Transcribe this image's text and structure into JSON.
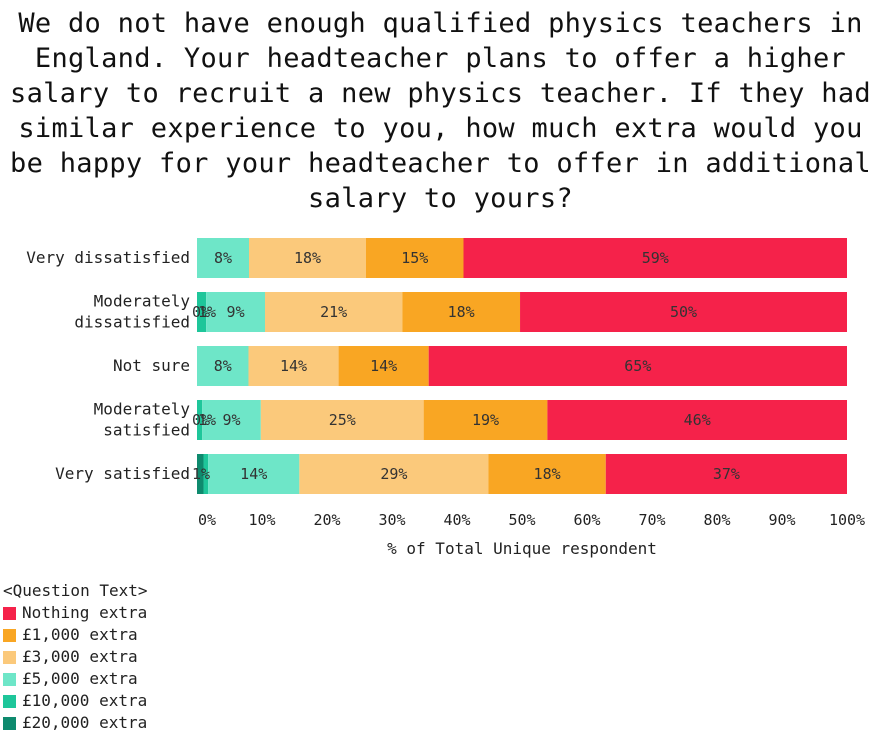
{
  "chart_data": {
    "type": "bar",
    "orientation": "horizontal",
    "stacked": true,
    "title": "We do not have enough qualified physics teachers in England. Your headteacher plans to offer a higher salary to recruit a new physics teacher. If they had similar experience to you, how much extra would you be happy for your headteacher to offer in additional salary to yours?",
    "title_lines": [
      "We do not have enough qualified physics teachers in",
      "England. Your headteacher plans to offer a higher",
      "salary to recruit a new physics teacher. If they had",
      "similar experience to you, how much extra would you",
      "be happy for your headteacher to offer in additional",
      "salary to yours?"
    ],
    "xlabel": "% of Total Unique respondent",
    "ylabel": "",
    "xlim": [
      0,
      100
    ],
    "xticks": [
      "0%",
      "10%",
      "20%",
      "30%",
      "40%",
      "50%",
      "60%",
      "70%",
      "80%",
      "90%",
      "100%"
    ],
    "categories": [
      [
        "Very dissatisfied"
      ],
      [
        "Moderately",
        "dissatisfied"
      ],
      [
        "Not sure"
      ],
      [
        "Moderately",
        "satisfied"
      ],
      [
        "Very satisfied"
      ]
    ],
    "legend_title": "<Question Text>",
    "legend_position": "bottom-left",
    "series": [
      {
        "name": "£20,000 extra",
        "color": "#0e8a6e",
        "values": [
          0,
          0,
          0,
          0,
          1
        ],
        "labels": [
          "",
          "0%",
          "",
          "0%",
          "1%"
        ]
      },
      {
        "name": "£10,000 extra",
        "color": "#1ec69a",
        "values": [
          0,
          1.4,
          0,
          0.8,
          0.7
        ],
        "labels": [
          "",
          "1%",
          "",
          "1%",
          ""
        ]
      },
      {
        "name": "£5,000 extra",
        "color": "#6ee6c8",
        "values": [
          8,
          9,
          8,
          9,
          14
        ],
        "labels": [
          "8%",
          "9%",
          "8%",
          "9%",
          "14%"
        ]
      },
      {
        "name": "£3,000 extra",
        "color": "#fbc97b",
        "values": [
          18,
          21,
          14,
          25,
          29
        ],
        "labels": [
          "18%",
          "21%",
          "14%",
          "25%",
          "29%"
        ]
      },
      {
        "name": "£1,000 extra",
        "color": "#f9a623",
        "values": [
          15,
          18,
          14,
          19,
          18
        ],
        "labels": [
          "15%",
          "18%",
          "14%",
          "19%",
          "18%"
        ]
      },
      {
        "name": "Nothing extra",
        "color": "#f5224a",
        "values": [
          59,
          50,
          65,
          46,
          37
        ],
        "labels": [
          "59%",
          "50%",
          "65%",
          "46%",
          "37%"
        ]
      }
    ],
    "legend_order": [
      "Nothing extra",
      "£1,000 extra",
      "£3,000 extra",
      "£5,000 extra",
      "£10,000 extra",
      "£20,000 extra"
    ]
  }
}
